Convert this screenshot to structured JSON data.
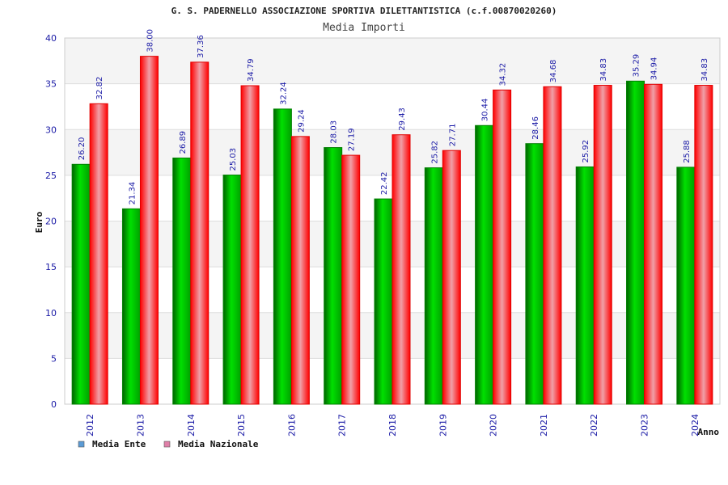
{
  "chart_data": {
    "type": "bar",
    "title": "G. S. PADERNELLO ASSOCIAZIONE SPORTIVA DILETTANTISTICA (c.f.00870020260)",
    "subtitle": "Media Importi",
    "xlabel": "Anno",
    "ylabel": "Euro",
    "ylim": [
      0,
      40
    ],
    "yticks": [
      "0",
      "5",
      "10",
      "15",
      "20",
      "25",
      "30",
      "35",
      "40"
    ],
    "grid": true,
    "legend_position": "bottom-left",
    "categories": [
      "2012",
      "2013",
      "2014",
      "2015",
      "2016",
      "2017",
      "2018",
      "2019",
      "2020",
      "2021",
      "2022",
      "2023",
      "2024"
    ],
    "series": [
      {
        "name": "Media Ente",
        "values": [
          26.2,
          21.34,
          26.89,
          25.03,
          32.24,
          28.03,
          22.42,
          25.82,
          30.44,
          28.46,
          25.92,
          35.29,
          25.88
        ],
        "labels": [
          "26.20",
          "21.34",
          "26.89",
          "25.03",
          "32.24",
          "28.03",
          "22.42",
          "25.82",
          "30.44",
          "28.46",
          "25.92",
          "35.29",
          "25.88"
        ],
        "color": "#00b000",
        "legend_color": "#5b9bd5"
      },
      {
        "name": "Media Nazionale",
        "values": [
          32.82,
          38.0,
          37.36,
          34.79,
          29.24,
          27.19,
          29.43,
          27.71,
          34.32,
          34.68,
          34.83,
          34.94,
          34.83
        ],
        "labels": [
          "32.82",
          "38.00",
          "37.36",
          "34.79",
          "29.24",
          "27.19",
          "29.43",
          "27.71",
          "34.32",
          "34.68",
          "34.83",
          "34.94",
          "34.83"
        ],
        "color": "#ff1a1a",
        "legend_color": "#e07fa8"
      }
    ]
  }
}
